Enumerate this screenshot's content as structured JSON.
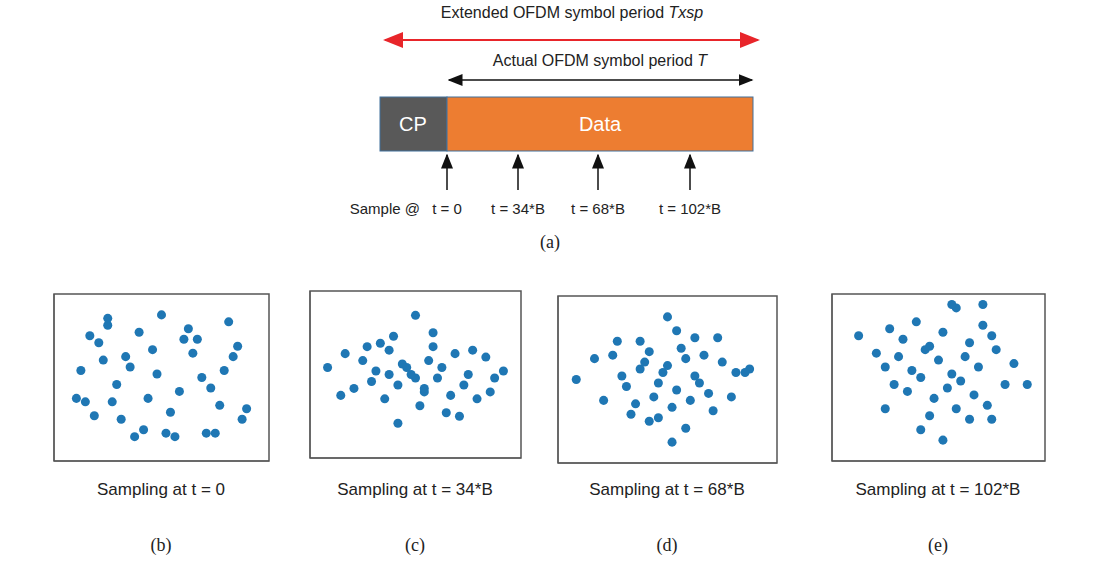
{
  "diagram": {
    "panel": "(a)",
    "extended_period": {
      "text": "Extended OFDM symbol period",
      "symbol": "Txsp"
    },
    "actual_period": {
      "text": "Actual OFDM symbol period",
      "symbol": "T"
    },
    "blocks": [
      "CP",
      "Data"
    ],
    "sample_prefix": "Sample @",
    "samples": [
      "t = 0",
      "t = 34*B",
      "t = 68*B",
      "t = 102*B"
    ]
  },
  "chart_data": [
    {
      "type": "scatter",
      "panel": "(b)",
      "caption": "Sampling at t = 0",
      "color": "#1f77b4",
      "marker": "circle",
      "tick_labels": false,
      "xlim": [
        -1.2,
        1.2
      ],
      "ylim": [
        -1.2,
        1.2
      ],
      "x": [
        -0.9,
        -0.75,
        -0.6,
        -0.4,
        -0.2,
        0,
        0.2,
        0.4,
        0.6,
        0.85,
        -0.85,
        -0.65,
        -0.45,
        -0.25,
        -0.05,
        0.15,
        0.35,
        0.55,
        0.75,
        0.95,
        -0.95,
        -0.7,
        -0.5,
        -0.3,
        -0.1,
        0.1,
        0.3,
        0.5,
        0.7,
        0.9,
        -0.8,
        -0.55,
        -0.35,
        -0.15,
        0.05,
        0.25,
        0.45,
        0.65,
        0.8,
        -0.6
      ],
      "values": [
        0.1,
        -0.55,
        0.75,
        0.3,
        -0.75,
        0.9,
        -0.2,
        0.55,
        -0.8,
        0.45,
        -0.35,
        0.25,
        -0.6,
        0.65,
        0.05,
        -0.85,
        0.35,
        -0.15,
        0.8,
        -0.45,
        -0.3,
        0.5,
        -0.1,
        -0.85,
        0.4,
        -0.5,
        0.7,
        -0.8,
        0.1,
        -0.6,
        0.6,
        -0.35,
        0.15,
        -0.3,
        -0.8,
        0.55,
        0.0,
        -0.4,
        0.3,
        0.85
      ]
    },
    {
      "type": "scatter",
      "panel": "(c)",
      "caption": "Sampling at t = 34*B",
      "color": "#1f77b4",
      "marker": "circle",
      "tick_labels": false,
      "xlim": [
        -1.2,
        1.2
      ],
      "ylim": [
        -1.2,
        1.2
      ],
      "x": [
        -1.0,
        -0.8,
        -0.6,
        -0.45,
        -0.3,
        -0.15,
        0,
        0.15,
        0.3,
        0.45,
        0.6,
        0.8,
        1.0,
        -0.7,
        -0.5,
        -0.35,
        -0.2,
        -0.05,
        0.1,
        0.25,
        0.4,
        0.55,
        0.7,
        0.9,
        -0.4,
        -0.25,
        -0.1,
        0.05,
        0.2,
        0.35,
        -0.55,
        0.5,
        -0.85,
        0.85,
        0.0,
        -0.2,
        0.2,
        0.1,
        -0.3,
        0.65
      ],
      "values": [
        0.1,
        0.3,
        0.2,
        0.05,
        0.35,
        0.15,
        -0.05,
        0.2,
        0.1,
        0.3,
        0.0,
        0.25,
        0.05,
        -0.2,
        -0.1,
        -0.35,
        -0.15,
        0.0,
        -0.25,
        -0.05,
        -0.3,
        -0.15,
        -0.35,
        -0.05,
        0.45,
        0.55,
        0.1,
        -0.45,
        0.4,
        -0.55,
        0.4,
        -0.6,
        -0.3,
        -0.25,
        0.85,
        -0.7,
        0.6,
        -0.2,
        0.0,
        0.35
      ]
    },
    {
      "type": "scatter",
      "panel": "(d)",
      "caption": "Sampling at t = 68*B",
      "color": "#1f77b4",
      "marker": "circle",
      "tick_labels": false,
      "xlim": [
        -1.2,
        1.2
      ],
      "ylim": [
        -1.2,
        1.2
      ],
      "x": [
        -1.0,
        -0.7,
        -0.6,
        -0.45,
        -0.3,
        -0.2,
        -0.1,
        0,
        0.1,
        0.2,
        0.3,
        0.45,
        0.6,
        0.75,
        0.9,
        -0.5,
        -0.35,
        -0.25,
        -0.15,
        -0.05,
        0.05,
        0.15,
        0.25,
        0.35,
        0.5,
        -0.3,
        -0.1,
        0.1,
        0.3,
        -0.2,
        0.0,
        0.2,
        -0.55,
        0.55,
        0.05,
        -0.4,
        0.4,
        0.7,
        -0.8,
        0.85
      ],
      "values": [
        0.0,
        -0.3,
        0.35,
        -0.1,
        0.15,
        0.4,
        -0.05,
        0.2,
        -0.15,
        0.3,
        0.05,
        -0.2,
        0.25,
        0.1,
        0.15,
        0.05,
        -0.35,
        0.25,
        -0.25,
        0.1,
        -0.4,
        0.45,
        -0.3,
        -0.05,
        -0.45,
        0.55,
        -0.55,
        0.7,
        0.6,
        -0.6,
        0.9,
        -0.7,
        0.55,
        0.6,
        -0.9,
        -0.5,
        0.35,
        -0.25,
        0.3,
        0.1
      ]
    },
    {
      "type": "scatter",
      "panel": "(e)",
      "caption": "Sampling at t = 102*B",
      "color": "#1f77b4",
      "marker": "circle",
      "tick_labels": false,
      "xlim": [
        -1.2,
        1.2
      ],
      "ylim": [
        -1.2,
        1.2
      ],
      "x": [
        -0.9,
        -0.7,
        -0.55,
        -0.4,
        -0.25,
        -0.1,
        0.05,
        0.2,
        0.35,
        0.5,
        0.65,
        0.85,
        -0.6,
        -0.45,
        -0.3,
        -0.15,
        0.0,
        0.15,
        0.3,
        0.45,
        0.6,
        -0.5,
        -0.35,
        -0.2,
        -0.05,
        0.1,
        0.25,
        0.4,
        0.55,
        0.75,
        -0.1,
        0.2,
        -0.2,
        0.35,
        0.05,
        -0.6,
        0.6,
        0.15,
        0.5,
        1.0
      ],
      "values": [
        0.6,
        0.35,
        0.7,
        0.55,
        0.8,
        0.45,
        0.65,
        1.0,
        0.5,
        0.75,
        0.4,
        0.2,
        0.15,
        0.3,
        0.1,
        0.4,
        0.25,
        0.05,
        0.3,
        0.15,
        0.6,
        -0.1,
        -0.2,
        0.0,
        -0.3,
        -0.15,
        -0.05,
        -0.25,
        -0.4,
        -0.1,
        -0.55,
        -0.45,
        -0.75,
        -0.6,
        -0.9,
        -0.45,
        -0.6,
        1.05,
        1.05,
        -0.1
      ]
    }
  ]
}
